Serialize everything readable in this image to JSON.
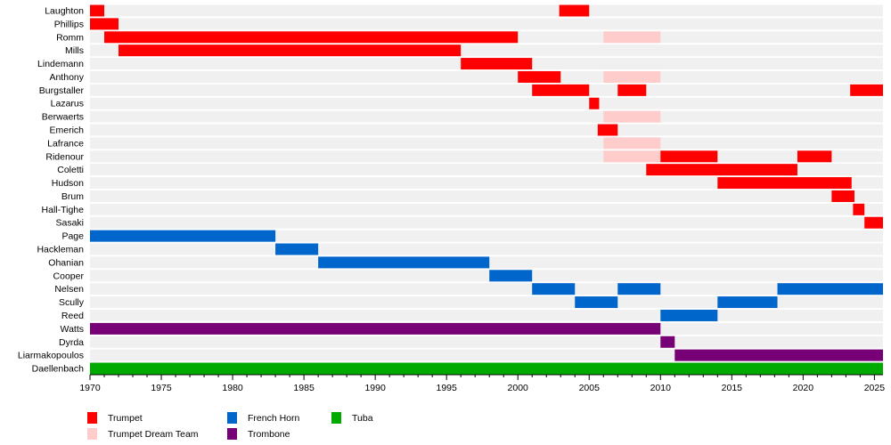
{
  "chart_data": {
    "type": "timeline",
    "xlim": [
      1970,
      2025.6
    ],
    "x_ticks": [
      1970,
      1975,
      1980,
      1985,
      1990,
      1995,
      2000,
      2005,
      2010,
      2015,
      2020,
      2025
    ],
    "legend": [
      {
        "key": "trumpet",
        "label": "Trumpet",
        "color": "#ff0000"
      },
      {
        "key": "dream",
        "label": "Trumpet Dream Team",
        "color": "#ffcccc"
      },
      {
        "key": "horn",
        "label": "French Horn",
        "color": "#0066cc"
      },
      {
        "key": "trombone",
        "label": "Trombone",
        "color": "#770077"
      },
      {
        "key": "tuba",
        "label": "Tuba",
        "color": "#00aa00"
      }
    ],
    "legend_placement": "bottom-left",
    "members": [
      {
        "name": "Laughton",
        "spans": [
          [
            "trumpet",
            1970,
            1971
          ],
          [
            "trumpet",
            2002.9,
            2005
          ]
        ]
      },
      {
        "name": "Phillips",
        "spans": [
          [
            "trumpet",
            1970,
            1972
          ]
        ]
      },
      {
        "name": "Romm",
        "spans": [
          [
            "trumpet",
            1971,
            2000
          ],
          [
            "dream",
            2006,
            2010
          ]
        ]
      },
      {
        "name": "Mills",
        "spans": [
          [
            "trumpet",
            1972,
            1996
          ]
        ]
      },
      {
        "name": "Lindemann",
        "spans": [
          [
            "trumpet",
            1996,
            2001
          ]
        ]
      },
      {
        "name": "Anthony",
        "spans": [
          [
            "trumpet",
            2000,
            2003
          ],
          [
            "dream",
            2006,
            2010
          ]
        ]
      },
      {
        "name": "Burgstaller",
        "spans": [
          [
            "trumpet",
            2001,
            2005
          ],
          [
            "trumpet",
            2007,
            2009
          ],
          [
            "trumpet",
            2023.3,
            2025.6
          ]
        ]
      },
      {
        "name": "Lazarus",
        "spans": [
          [
            "trumpet",
            2005,
            2005.7
          ]
        ]
      },
      {
        "name": "Berwaerts",
        "spans": [
          [
            "dream",
            2006,
            2010
          ]
        ]
      },
      {
        "name": "Emerich",
        "spans": [
          [
            "trumpet",
            2005.6,
            2007
          ]
        ]
      },
      {
        "name": "Lafrance",
        "spans": [
          [
            "dream",
            2006,
            2010
          ]
        ]
      },
      {
        "name": "Ridenour",
        "spans": [
          [
            "dream",
            2006,
            2010
          ],
          [
            "trumpet",
            2010,
            2014
          ],
          [
            "trumpet",
            2019.6,
            2022
          ]
        ]
      },
      {
        "name": "Coletti",
        "spans": [
          [
            "trumpet",
            2009,
            2019.6
          ]
        ]
      },
      {
        "name": "Hudson",
        "spans": [
          [
            "trumpet",
            2014,
            2023.4
          ]
        ]
      },
      {
        "name": "Brum",
        "spans": [
          [
            "trumpet",
            2022,
            2023.6
          ]
        ]
      },
      {
        "name": "Hall-Tighe",
        "spans": [
          [
            "trumpet",
            2023.5,
            2024.3
          ]
        ]
      },
      {
        "name": "Sasaki",
        "spans": [
          [
            "trumpet",
            2024.3,
            2025.6
          ]
        ]
      },
      {
        "name": "Page",
        "spans": [
          [
            "horn",
            1970,
            1983
          ]
        ]
      },
      {
        "name": "Hackleman",
        "spans": [
          [
            "horn",
            1983,
            1986
          ]
        ]
      },
      {
        "name": "Ohanian",
        "spans": [
          [
            "horn",
            1986,
            1998
          ]
        ]
      },
      {
        "name": "Cooper",
        "spans": [
          [
            "horn",
            1998,
            2001
          ]
        ]
      },
      {
        "name": "Nelsen",
        "spans": [
          [
            "horn",
            2001,
            2004
          ],
          [
            "horn",
            2007,
            2010
          ],
          [
            "horn",
            2018.2,
            2025.6
          ]
        ]
      },
      {
        "name": "Scully",
        "spans": [
          [
            "horn",
            2004,
            2007
          ],
          [
            "horn",
            2014,
            2018.2
          ]
        ]
      },
      {
        "name": "Reed",
        "spans": [
          [
            "horn",
            2010,
            2014
          ]
        ]
      },
      {
        "name": "Watts",
        "spans": [
          [
            "trombone",
            1970,
            2010
          ]
        ]
      },
      {
        "name": "Dyrda",
        "spans": [
          [
            "trombone",
            2010,
            2011
          ]
        ]
      },
      {
        "name": "Liarmakopoulos",
        "spans": [
          [
            "trombone",
            2011,
            2025.6
          ]
        ]
      },
      {
        "name": "Daellenbach",
        "spans": [
          [
            "tuba",
            1970,
            2025.6
          ]
        ]
      }
    ]
  }
}
